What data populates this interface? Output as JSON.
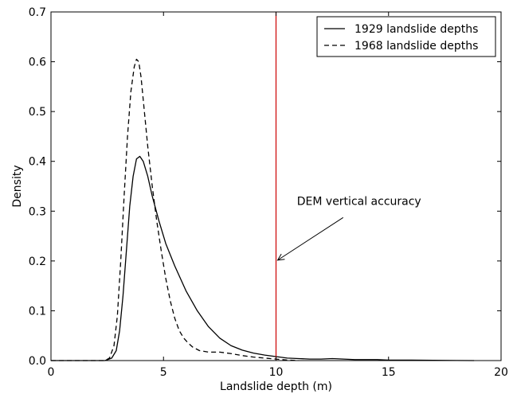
{
  "chart_data": {
    "type": "line",
    "title": "",
    "xlabel": "Landslide depth (m)",
    "ylabel": "Density",
    "xlim": [
      0,
      20
    ],
    "ylim": [
      0,
      0.7
    ],
    "xticks": [
      0,
      5,
      10,
      15,
      20
    ],
    "xtick_labels": [
      "0",
      "5",
      "10",
      "15",
      "20"
    ],
    "yticks": [
      0.0,
      0.1,
      0.2,
      0.3,
      0.4,
      0.5,
      0.6,
      0.7
    ],
    "ytick_labels": [
      "0.0",
      "0.1",
      "0.2",
      "0.3",
      "0.4",
      "0.5",
      "0.6",
      "0.7"
    ],
    "grid": false,
    "legend_position": "top-right",
    "series": [
      {
        "name": "1929 landslide depths",
        "style": "solid",
        "color": "#000000",
        "x": [
          0,
          2.4,
          2.7,
          2.9,
          3.05,
          3.2,
          3.35,
          3.5,
          3.65,
          3.8,
          3.95,
          4.1,
          4.3,
          4.5,
          4.8,
          5.1,
          5.5,
          6.0,
          6.5,
          7.0,
          7.5,
          8.0,
          8.5,
          9.0,
          9.5,
          10.0,
          10.5,
          11.0,
          11.5,
          12.0,
          12.5,
          13.0,
          13.5,
          14.0,
          14.5,
          15.0,
          16.0,
          17.0,
          18.0,
          18.8
        ],
        "y": [
          0,
          0.0,
          0.005,
          0.02,
          0.06,
          0.13,
          0.22,
          0.31,
          0.37,
          0.405,
          0.41,
          0.4,
          0.37,
          0.33,
          0.28,
          0.235,
          0.19,
          0.14,
          0.1,
          0.068,
          0.045,
          0.03,
          0.021,
          0.015,
          0.011,
          0.008,
          0.005,
          0.004,
          0.003,
          0.003,
          0.004,
          0.003,
          0.002,
          0.002,
          0.002,
          0.001,
          0.001,
          0.0005,
          0.0002,
          0.0
        ]
      },
      {
        "name": "1968 landslide depths",
        "style": "dashed",
        "color": "#000000",
        "x": [
          0,
          2.4,
          2.6,
          2.8,
          2.95,
          3.1,
          3.25,
          3.4,
          3.55,
          3.7,
          3.8,
          3.9,
          4.0,
          4.15,
          4.3,
          4.5,
          4.7,
          4.9,
          5.1,
          5.3,
          5.5,
          5.7,
          5.9,
          6.1,
          6.3,
          6.6,
          7.0,
          7.5,
          8.0,
          8.5,
          9.0,
          9.5,
          10.0,
          10.5,
          11.0
        ],
        "y": [
          0,
          0.0,
          0.005,
          0.03,
          0.09,
          0.2,
          0.33,
          0.45,
          0.54,
          0.59,
          0.605,
          0.6,
          0.57,
          0.5,
          0.43,
          0.35,
          0.28,
          0.22,
          0.165,
          0.12,
          0.085,
          0.06,
          0.045,
          0.035,
          0.027,
          0.02,
          0.017,
          0.017,
          0.014,
          0.01,
          0.007,
          0.005,
          0.003,
          0.001,
          0.0
        ]
      }
    ],
    "reference_line": {
      "x": 10,
      "color": "#cc0000"
    },
    "annotation": {
      "text": "DEM vertical accuracy",
      "text_x": 11.0,
      "text_y": 0.3,
      "arrow_to_x": 10.0,
      "arrow_to_y": 0.2
    }
  }
}
